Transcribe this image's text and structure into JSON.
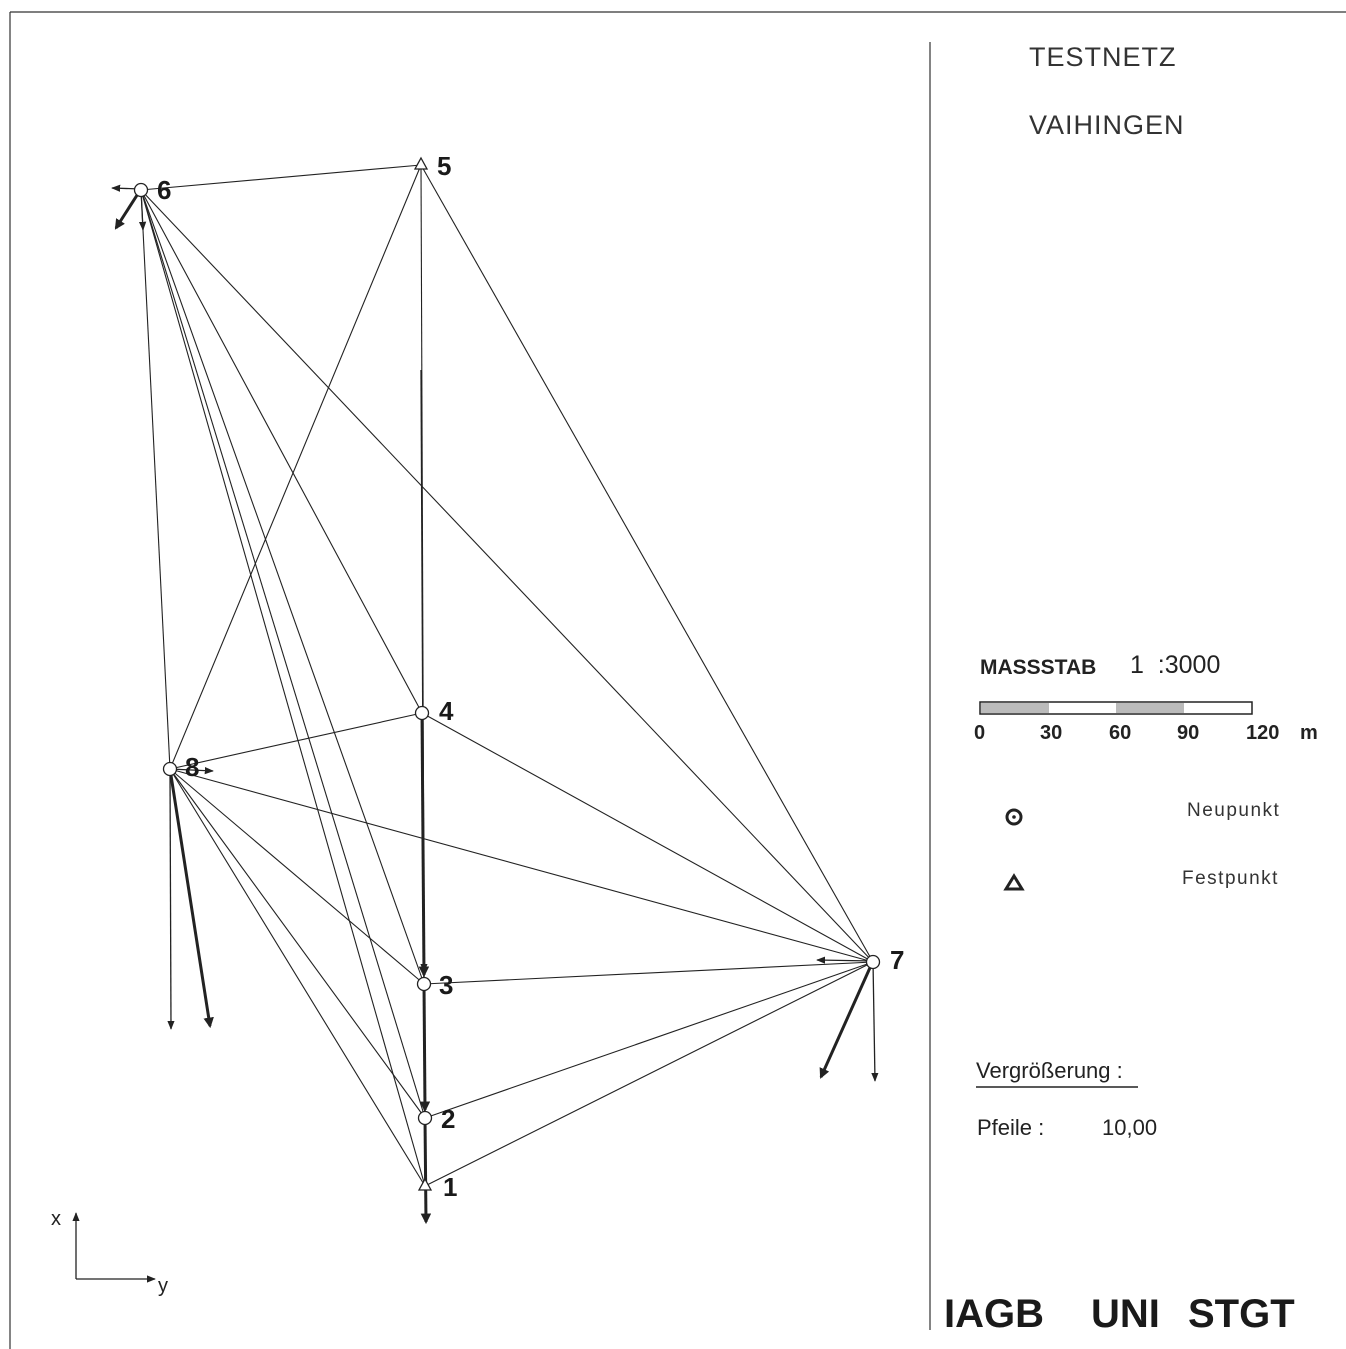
{
  "header": {
    "title_line1": "TESTNETZ",
    "title_line2": "VAIHINGEN"
  },
  "network": {
    "points": [
      {
        "id": "1",
        "type": "Festpunkt"
      },
      {
        "id": "2",
        "type": "Neupunkt"
      },
      {
        "id": "3",
        "type": "Neupunkt"
      },
      {
        "id": "4",
        "type": "Neupunkt"
      },
      {
        "id": "5",
        "type": "Festpunkt"
      },
      {
        "id": "6",
        "type": "Neupunkt"
      },
      {
        "id": "7",
        "type": "Neupunkt"
      },
      {
        "id": "8",
        "type": "Neupunkt"
      }
    ],
    "connections": [
      [
        "6",
        "5"
      ],
      [
        "6",
        "8"
      ],
      [
        "6",
        "3"
      ],
      [
        "6",
        "2"
      ],
      [
        "6",
        "1"
      ],
      [
        "6",
        "4"
      ],
      [
        "6",
        "7"
      ],
      [
        "5",
        "8"
      ],
      [
        "5",
        "1"
      ],
      [
        "5",
        "7"
      ],
      [
        "4",
        "8"
      ],
      [
        "4",
        "1"
      ],
      [
        "4",
        "7"
      ],
      [
        "8",
        "3"
      ],
      [
        "8",
        "2"
      ],
      [
        "8",
        "1"
      ],
      [
        "8",
        "7"
      ],
      [
        "3",
        "7"
      ],
      [
        "2",
        "7"
      ],
      [
        "1",
        "7"
      ]
    ]
  },
  "scale": {
    "label": "MASSSTAB",
    "ratio": "1  :3000",
    "ticks": [
      "0",
      "30",
      "60",
      "90",
      "120"
    ],
    "unit": "m"
  },
  "legend": {
    "new_point": "Neupunkt",
    "fixed_point": "Festpunkt"
  },
  "magnification": {
    "heading": "Vergrößerung :",
    "arrows_label": "Pfeile :",
    "arrows_value": "10,00"
  },
  "axes": {
    "x": "x",
    "y": "y"
  },
  "footer": {
    "institute": "IAGB",
    "university": "UNI",
    "city": "STGT"
  }
}
